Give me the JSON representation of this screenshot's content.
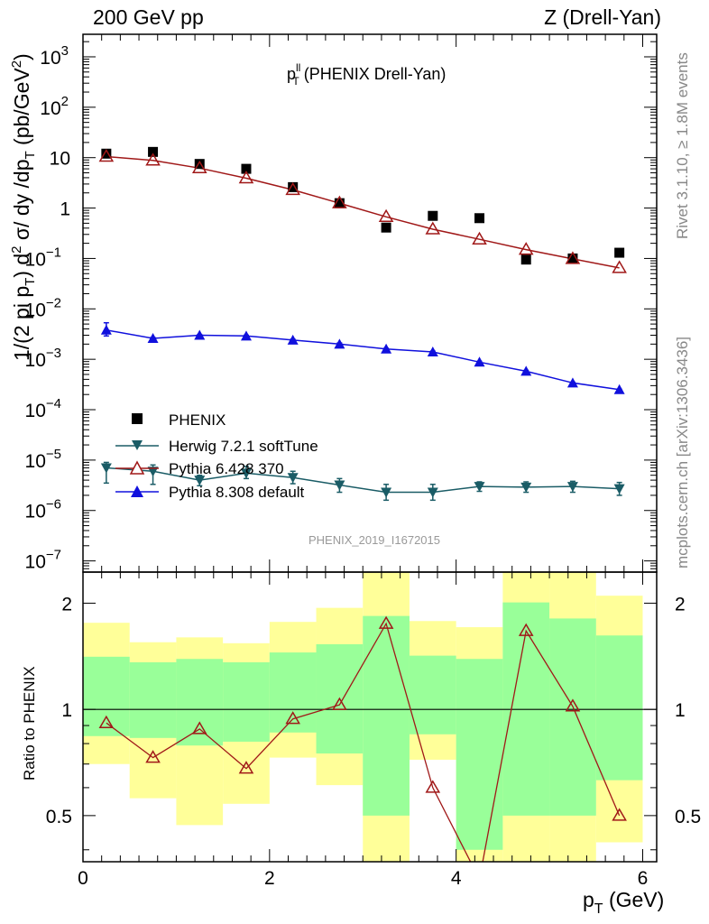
{
  "header": {
    "left": "200 GeV pp",
    "right": "Z (Drell-Yan)"
  },
  "side_text": {
    "rivet": "Rivet 3.1.10, ≥ 1.8M events",
    "mcplots": "mcplots.cern.ch [arXiv:1306.3436]"
  },
  "watermark": "PHENIX_2019_I1672015",
  "chart_data": [
    {
      "type": "scatter",
      "title_main": "p",
      "title_sup": "ll",
      "title_sub": "T",
      "title_rest": " (PHENIX Drell-Yan)",
      "ylabel": "1/(2 pi p_T) d²σ/ dy /dp_T (pb/GeV²)",
      "yscale": "log",
      "ylim": [
        6e-08,
        2800
      ],
      "xlim": [
        0,
        6.15
      ],
      "y_ticks": [
        {
          "v": 1000,
          "base": "10",
          "exp": "3"
        },
        {
          "v": 100,
          "base": "10",
          "exp": "2"
        },
        {
          "v": 10,
          "base": "10",
          "exp": ""
        },
        {
          "v": 1,
          "base": "1",
          "exp": ""
        },
        {
          "v": 0.1,
          "base": "10",
          "exp": "−1"
        },
        {
          "v": 0.01,
          "base": "10",
          "exp": "−2"
        },
        {
          "v": 0.001,
          "base": "10",
          "exp": "−3"
        },
        {
          "v": 0.0001,
          "base": "10",
          "exp": "−4"
        },
        {
          "v": 1e-05,
          "base": "10",
          "exp": "−5"
        },
        {
          "v": 1e-06,
          "base": "10",
          "exp": "−6"
        },
        {
          "v": 1e-07,
          "base": "10",
          "exp": "−7"
        }
      ],
      "series": [
        {
          "name": "PHENIX",
          "color": "#000000",
          "marker": "square",
          "x": [
            0.25,
            0.75,
            1.25,
            1.75,
            2.25,
            2.75,
            3.25,
            3.75,
            4.25,
            4.75,
            5.25,
            5.75
          ],
          "y": [
            12,
            13,
            7.5,
            6,
            2.6,
            1.25,
            0.41,
            0.7,
            0.63,
            0.095,
            0.1,
            0.13
          ]
        },
        {
          "name": "Herwig 7.2.1 softTune",
          "color": "#1a5c66",
          "marker": "triangle-down",
          "x": [
            0.25,
            0.75,
            1.25,
            1.75,
            2.25,
            2.75,
            3.25,
            3.75,
            4.25,
            4.75,
            5.25,
            5.75
          ],
          "y": [
            7e-06,
            6e-06,
            4e-06,
            5.5e-06,
            4.5e-06,
            3.2e-06,
            2.3e-06,
            2.3e-06,
            3e-06,
            2.9e-06,
            3e-06,
            2.7e-06
          ],
          "err_lo": [
            3.5e-06,
            3.3e-06,
            3.1e-06,
            4.3e-06,
            3.4e-06,
            2.3e-06,
            1.6e-06,
            1.6e-06,
            2.4e-06,
            2.3e-06,
            2.3e-06,
            2e-06
          ],
          "err_hi": [
            9e-06,
            8e-06,
            5e-06,
            7.5e-06,
            6e-06,
            4.3e-06,
            3.3e-06,
            3.3e-06,
            3.7e-06,
            3.7e-06,
            3.8e-06,
            3.6e-06
          ]
        },
        {
          "name": "Pythia 6.428 370",
          "color": "#a01818",
          "marker": "triangle-open",
          "x": [
            0.25,
            0.75,
            1.25,
            1.75,
            2.25,
            2.75,
            3.25,
            3.75,
            4.25,
            4.75,
            5.25,
            5.75
          ],
          "y": [
            10.5,
            8.8,
            6.2,
            3.9,
            2.3,
            1.25,
            0.67,
            0.38,
            0.24,
            0.15,
            0.098,
            0.065
          ]
        },
        {
          "name": "Pythia 8.308 default",
          "color": "#1010dd",
          "marker": "triangle-up",
          "x": [
            0.25,
            0.75,
            1.25,
            1.75,
            2.25,
            2.75,
            3.25,
            3.75,
            4.25,
            4.75,
            5.25,
            5.75
          ],
          "y": [
            0.0038,
            0.0026,
            0.003,
            0.0029,
            0.0024,
            0.002,
            0.0016,
            0.0014,
            0.00088,
            0.00058,
            0.00034,
            0.00025
          ],
          "err_lo": [
            0.0029,
            0.0025,
            0.0029,
            0.0028,
            0.0023,
            0.0019,
            0.00155,
            0.00135,
            0.00085,
            0.00056,
            0.00033,
            0.000245
          ],
          "err_hi": [
            0.0053,
            0.0027,
            0.0031,
            0.003,
            0.0025,
            0.0021,
            0.00165,
            0.00145,
            0.00091,
            0.0006,
            0.00035,
            0.000255
          ]
        }
      ],
      "legend_position": "center-left"
    },
    {
      "type": "line",
      "ylabel": "Ratio to PHENIX",
      "xlabel": "p_T (GeV)",
      "yscale": "log",
      "ylim": [
        0.37,
        2.45
      ],
      "xlim": [
        0,
        6.15
      ],
      "x_ticks": [
        0,
        2,
        4,
        6
      ],
      "y_ticks": [
        0.5,
        1,
        2
      ],
      "bins": [
        0,
        0.5,
        1,
        1.5,
        2,
        2.5,
        3,
        3.5,
        4,
        4.5,
        5,
        5.5,
        6
      ],
      "band_yellow": {
        "lo": [
          0.7,
          0.56,
          0.47,
          0.54,
          0.73,
          0.61,
          0.3,
          0.72,
          0.2,
          0.3,
          0.3,
          0.42
        ],
        "hi": [
          1.76,
          1.55,
          1.6,
          1.54,
          1.77,
          1.94,
          2.5,
          1.78,
          1.71,
          2.5,
          2.5,
          2.1
        ]
      },
      "band_green": {
        "lo": [
          0.84,
          0.83,
          0.79,
          0.81,
          0.86,
          0.75,
          0.5,
          0.85,
          0.4,
          0.5,
          0.5,
          0.63
        ],
        "hi": [
          1.41,
          1.36,
          1.39,
          1.36,
          1.45,
          1.53,
          1.84,
          1.42,
          1.39,
          2.01,
          1.81,
          1.62
        ]
      },
      "series": [
        {
          "name": "Pythia 6.428 370",
          "color": "#a01818",
          "x": [
            0.25,
            0.75,
            1.25,
            1.75,
            2.25,
            2.75,
            3.25,
            3.75,
            4.25,
            4.75,
            5.25,
            5.75
          ],
          "y": [
            0.915,
            0.73,
            0.88,
            0.68,
            0.94,
            1.03,
            1.75,
            0.6,
            0.33,
            1.67,
            1.02,
            0.5
          ]
        }
      ]
    }
  ]
}
